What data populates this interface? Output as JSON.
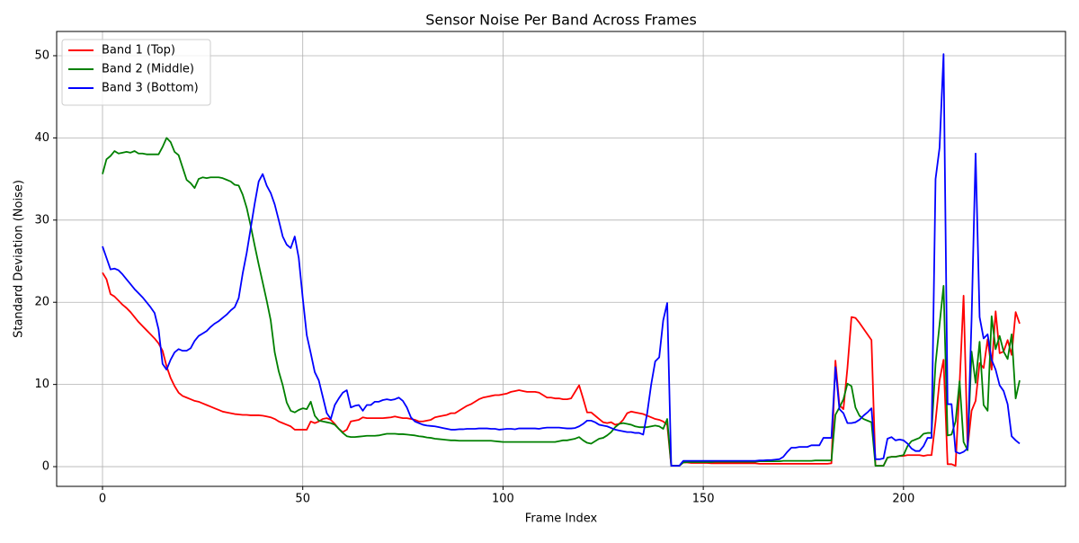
{
  "chart_data": {
    "type": "line",
    "title": "Sensor Noise Per Band Across Frames",
    "xlabel": "Frame Index",
    "ylabel": "Standard Deviation (Noise)",
    "grid": true,
    "legend": "upper-left",
    "xlim": [
      -11.45,
      240.45
    ],
    "ylim": [
      -2.4,
      52.95
    ],
    "xticks": [
      0,
      50,
      100,
      150,
      200
    ],
    "yticks": [
      0,
      10,
      20,
      30,
      40,
      50
    ],
    "x": [
      0,
      1,
      2,
      3,
      4,
      5,
      6,
      7,
      8,
      9,
      10,
      11,
      12,
      13,
      14,
      15,
      16,
      17,
      18,
      19,
      20,
      21,
      22,
      23,
      24,
      25,
      26,
      27,
      28,
      29,
      30,
      31,
      32,
      33,
      34,
      35,
      36,
      37,
      38,
      39,
      40,
      41,
      42,
      43,
      44,
      45,
      46,
      47,
      48,
      49,
      50,
      51,
      52,
      53,
      54,
      55,
      56,
      57,
      58,
      59,
      60,
      61,
      62,
      63,
      64,
      65,
      66,
      67,
      68,
      69,
      70,
      71,
      72,
      73,
      74,
      75,
      76,
      77,
      78,
      79,
      80,
      81,
      82,
      83,
      84,
      85,
      86,
      87,
      88,
      89,
      90,
      91,
      92,
      93,
      94,
      95,
      96,
      97,
      98,
      99,
      100,
      101,
      102,
      103,
      104,
      105,
      106,
      107,
      108,
      109,
      110,
      111,
      112,
      113,
      114,
      115,
      116,
      117,
      118,
      119,
      120,
      121,
      122,
      123,
      124,
      125,
      126,
      127,
      128,
      129,
      130,
      131,
      132,
      133,
      134,
      135,
      136,
      137,
      138,
      139,
      140,
      141,
      142,
      143,
      144,
      145,
      146,
      147,
      148,
      149,
      150,
      151,
      152,
      153,
      154,
      155,
      156,
      157,
      158,
      159,
      160,
      161,
      162,
      163,
      164,
      165,
      166,
      167,
      168,
      169,
      170,
      171,
      172,
      173,
      174,
      175,
      176,
      177,
      178,
      179,
      180,
      181,
      182,
      183,
      184,
      185,
      186,
      187,
      188,
      189,
      190,
      191,
      192,
      193,
      194,
      195,
      196,
      197,
      198,
      199,
      200,
      201,
      202,
      203,
      204,
      205,
      206,
      207,
      208,
      209,
      210,
      211,
      212,
      213,
      214,
      215,
      216,
      217,
      218,
      219,
      220,
      221,
      222,
      223,
      224,
      225,
      226,
      227,
      228,
      229
    ],
    "series": [
      {
        "name": "Band 1 (Top)",
        "color": "#ff0000",
        "values": [
          23.6,
          22.8,
          21,
          20.7,
          20.2,
          19.7,
          19.3,
          18.8,
          18.2,
          17.6,
          17.1,
          16.6,
          16.1,
          15.6,
          15,
          14.1,
          12.2,
          10.8,
          9.8,
          9,
          8.6,
          8.4,
          8.2,
          8,
          7.9,
          7.7,
          7.5,
          7.3,
          7.1,
          6.9,
          6.7,
          6.6,
          6.5,
          6.4,
          6.35,
          6.3,
          6.3,
          6.25,
          6.25,
          6.25,
          6.2,
          6.1,
          6,
          5.8,
          5.5,
          5.3,
          5.1,
          4.9,
          4.5,
          4.5,
          4.5,
          4.5,
          5.5,
          5.3,
          5.5,
          5.8,
          5.9,
          5.7,
          5.2,
          4.6,
          4.2,
          4.5,
          5.5,
          5.6,
          5.7,
          6,
          5.9,
          5.9,
          5.9,
          5.9,
          5.9,
          5.95,
          6,
          6.1,
          6,
          5.9,
          5.9,
          5.8,
          5.7,
          5.5,
          5.5,
          5.6,
          5.7,
          6,
          6.1,
          6.2,
          6.3,
          6.5,
          6.5,
          6.8,
          7.1,
          7.4,
          7.6,
          7.9,
          8.2,
          8.4,
          8.5,
          8.6,
          8.7,
          8.7,
          8.8,
          8.9,
          9.1,
          9.2,
          9.3,
          9.2,
          9.1,
          9.1,
          9.1,
          9,
          8.7,
          8.4,
          8.4,
          8.3,
          8.3,
          8.2,
          8.2,
          8.3,
          9.1,
          9.9,
          8.3,
          6.6,
          6.6,
          6.2,
          5.8,
          5.4,
          5.3,
          5.4,
          5.1,
          5.2,
          5.7,
          6.5,
          6.7,
          6.6,
          6.5,
          6.4,
          6.2,
          6,
          5.8,
          5.7,
          5.5,
          5.1,
          0.1,
          0.1,
          0.1,
          0.5,
          0.5,
          0.45,
          0.45,
          0.45,
          0.45,
          0.45,
          0.4,
          0.4,
          0.4,
          0.4,
          0.4,
          0.4,
          0.4,
          0.4,
          0.4,
          0.4,
          0.4,
          0.4,
          0.35,
          0.35,
          0.35,
          0.35,
          0.35,
          0.35,
          0.35,
          0.35,
          0.35,
          0.35,
          0.35,
          0.35,
          0.35,
          0.35,
          0.35,
          0.35,
          0.35,
          0.35,
          0.4,
          12.9,
          7.5,
          7,
          12,
          18.2,
          18.1,
          17.5,
          16.8,
          16.1,
          15.4,
          0.1,
          0.1,
          0.1,
          1.1,
          1.2,
          1.2,
          1.3,
          1.3,
          1.4,
          1.4,
          1.4,
          1.4,
          1.3,
          1.4,
          1.4,
          5.5,
          10.5,
          13,
          0.3,
          0.3,
          0.1,
          10,
          20.8,
          2.3,
          6.8,
          8,
          12.6,
          12,
          15.5,
          11.8,
          18.9,
          13.8,
          14,
          15.4,
          13.6,
          18.8,
          17.4
        ]
      },
      {
        "name": "Band 2 (Middle)",
        "color": "#008000",
        "values": [
          35.6,
          37.4,
          37.8,
          38.4,
          38.1,
          38.2,
          38.3,
          38.2,
          38.4,
          38.1,
          38.1,
          38,
          38,
          38,
          38,
          38.9,
          40,
          39.5,
          38.3,
          37.9,
          36.4,
          34.9,
          34.5,
          33.9,
          35,
          35.2,
          35.1,
          35.2,
          35.2,
          35.2,
          35.1,
          34.9,
          34.7,
          34.3,
          34.2,
          33.1,
          31.5,
          29.3,
          26.9,
          24.6,
          22.4,
          20.2,
          17.8,
          13.9,
          11.6,
          9.9,
          7.8,
          6.8,
          6.6,
          6.9,
          7.1,
          7,
          7.9,
          6.2,
          5.6,
          5.5,
          5.4,
          5.3,
          5.1,
          4.6,
          4.1,
          3.7,
          3.6,
          3.6,
          3.65,
          3.7,
          3.75,
          3.75,
          3.75,
          3.8,
          3.9,
          4,
          4,
          4,
          3.95,
          3.95,
          3.9,
          3.85,
          3.8,
          3.7,
          3.65,
          3.55,
          3.5,
          3.4,
          3.35,
          3.3,
          3.25,
          3.2,
          3.2,
          3.15,
          3.15,
          3.15,
          3.15,
          3.15,
          3.15,
          3.15,
          3.15,
          3.15,
          3.1,
          3.05,
          3,
          3,
          3,
          3,
          3,
          3,
          3,
          3,
          3,
          3,
          3,
          3,
          3,
          3,
          3.1,
          3.2,
          3.2,
          3.3,
          3.4,
          3.6,
          3.2,
          2.9,
          2.8,
          3.1,
          3.4,
          3.5,
          3.8,
          4.2,
          4.8,
          5.2,
          5.3,
          5.2,
          5.1,
          4.9,
          4.8,
          4.8,
          4.8,
          4.9,
          5,
          4.9,
          4.6,
          5.8,
          0.1,
          0.1,
          0.1,
          0.5,
          0.55,
          0.55,
          0.55,
          0.55,
          0.55,
          0.55,
          0.55,
          0.6,
          0.6,
          0.6,
          0.6,
          0.6,
          0.6,
          0.6,
          0.6,
          0.6,
          0.6,
          0.6,
          0.65,
          0.65,
          0.65,
          0.65,
          0.65,
          0.65,
          0.7,
          0.7,
          0.7,
          0.7,
          0.7,
          0.7,
          0.7,
          0.7,
          0.75,
          0.75,
          0.75,
          0.75,
          0.75,
          6.3,
          7.2,
          8.2,
          10.1,
          9.8,
          7.2,
          6.2,
          5.8,
          5.6,
          5.4,
          0.1,
          0.1,
          0.1,
          1.1,
          1.2,
          1.2,
          1.3,
          1.4,
          2.5,
          3.1,
          3.3,
          3.5,
          4,
          4.1,
          4.1,
          12.5,
          17.3,
          22,
          3.8,
          3.9,
          5.5,
          10.4,
          3,
          2,
          14,
          10.2,
          15.2,
          7.5,
          6.8,
          18.3,
          14.3,
          15.9,
          14,
          13.1,
          16.1,
          8.3,
          10.5
        ]
      },
      {
        "name": "Band 3 (Bottom)",
        "color": "#0000ff",
        "values": [
          26.8,
          25.4,
          24,
          24.1,
          23.9,
          23.4,
          22.8,
          22.2,
          21.6,
          21.1,
          20.6,
          20,
          19.4,
          18.7,
          16.7,
          12.5,
          11.8,
          13,
          13.9,
          14.3,
          14.1,
          14.1,
          14.4,
          15.3,
          15.9,
          16.2,
          16.5,
          17,
          17.4,
          17.7,
          18.1,
          18.5,
          19,
          19.4,
          20.5,
          23.5,
          26,
          29,
          32,
          34.7,
          35.6,
          34.2,
          33.3,
          31.9,
          30,
          28,
          27,
          26.6,
          28,
          25.4,
          20.5,
          16,
          13.8,
          11.5,
          10.5,
          8.5,
          6.5,
          5.8,
          7.5,
          8.3,
          9,
          9.3,
          7.2,
          7.4,
          7.5,
          6.8,
          7.5,
          7.5,
          7.9,
          7.9,
          8.1,
          8.2,
          8.1,
          8.2,
          8.4,
          8,
          7.2,
          6,
          5.5,
          5.3,
          5.1,
          5,
          4.95,
          4.9,
          4.8,
          4.7,
          4.6,
          4.5,
          4.5,
          4.55,
          4.55,
          4.6,
          4.6,
          4.6,
          4.65,
          4.65,
          4.65,
          4.6,
          4.6,
          4.5,
          4.55,
          4.6,
          4.6,
          4.55,
          4.65,
          4.65,
          4.65,
          4.65,
          4.65,
          4.6,
          4.7,
          4.75,
          4.75,
          4.75,
          4.75,
          4.7,
          4.65,
          4.65,
          4.7,
          4.9,
          5.2,
          5.6,
          5.6,
          5.4,
          5.1,
          5,
          4.9,
          4.7,
          4.5,
          4.4,
          4.3,
          4.2,
          4.2,
          4.1,
          4.1,
          3.9,
          6.5,
          10,
          12.8,
          13.3,
          17.8,
          19.9,
          0.1,
          0.1,
          0.1,
          0.7,
          0.7,
          0.7,
          0.7,
          0.7,
          0.7,
          0.7,
          0.7,
          0.7,
          0.7,
          0.7,
          0.7,
          0.7,
          0.7,
          0.7,
          0.7,
          0.7,
          0.7,
          0.7,
          0.75,
          0.75,
          0.8,
          0.8,
          0.85,
          0.9,
          1.2,
          1.8,
          2.3,
          2.3,
          2.4,
          2.4,
          2.4,
          2.6,
          2.6,
          2.6,
          3.5,
          3.5,
          3.5,
          12.1,
          7,
          6.5,
          5.3,
          5.3,
          5.4,
          5.7,
          6.2,
          6.6,
          7.1,
          0.9,
          0.9,
          1,
          3.4,
          3.6,
          3.2,
          3.3,
          3.2,
          2.8,
          2.2,
          1.9,
          1.9,
          2.5,
          3.5,
          3.5,
          35,
          38.8,
          50.2,
          7.6,
          7.6,
          1.8,
          1.6,
          1.8,
          2.2,
          18,
          38.1,
          18.2,
          15.6,
          16.1,
          13,
          11.8,
          9.9,
          9.2,
          7.6,
          3.7,
          3.2,
          2.8
        ]
      }
    ]
  }
}
